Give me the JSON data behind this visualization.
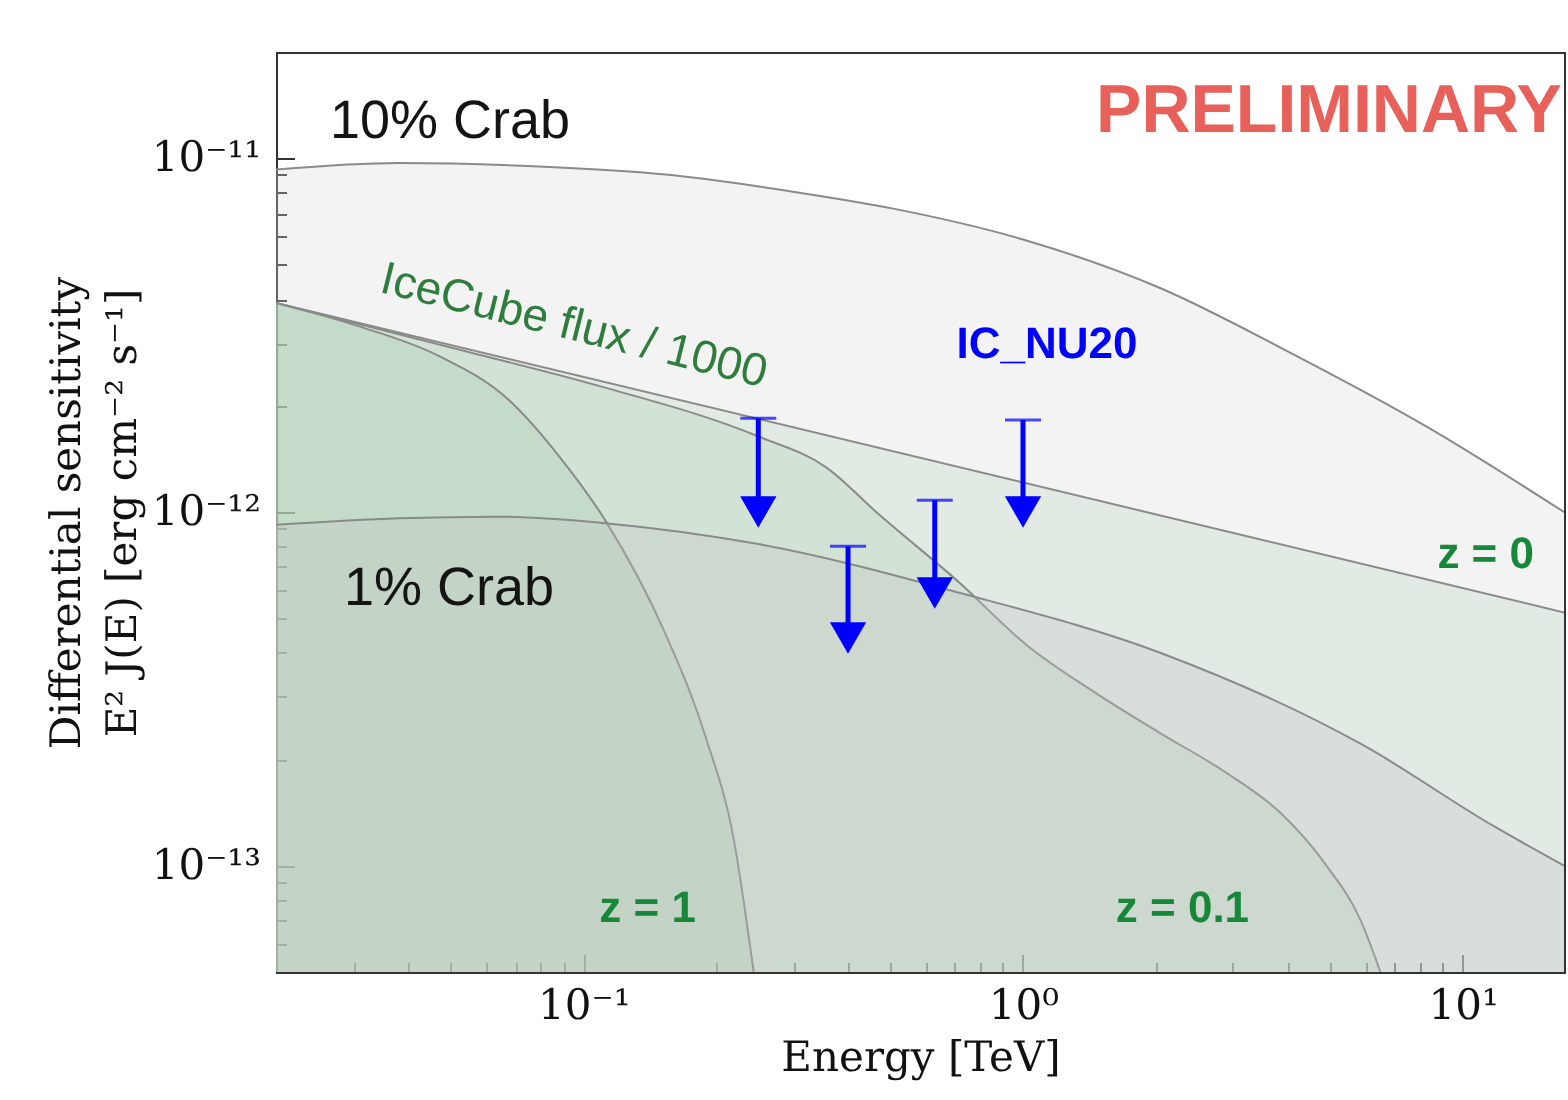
{
  "chart_data": {
    "type": "area",
    "log": "xy",
    "xlabel": "Energy [TeV]",
    "ylabel": "Differential sensitivity\nE² J(E) [erg cm⁻² s⁻¹]",
    "xlim": [
      0.02,
      17
    ],
    "ylim": [
      5e-14,
      2e-11
    ],
    "xticks": [
      {
        "value": 0.03,
        "label": null
      },
      {
        "value": 0.04,
        "label": null
      },
      {
        "value": 0.05,
        "label": null
      },
      {
        "value": 0.06,
        "label": null
      },
      {
        "value": 0.07,
        "label": null
      },
      {
        "value": 0.08,
        "label": null
      },
      {
        "value": 0.09,
        "label": null
      },
      {
        "value": 0.1,
        "label": "10⁻¹"
      },
      {
        "value": 0.2,
        "label": null
      },
      {
        "value": 0.3,
        "label": null
      },
      {
        "value": 0.4,
        "label": null
      },
      {
        "value": 0.5,
        "label": null
      },
      {
        "value": 0.6,
        "label": null
      },
      {
        "value": 0.7,
        "label": null
      },
      {
        "value": 0.8,
        "label": null
      },
      {
        "value": 0.9,
        "label": null
      },
      {
        "value": 1,
        "label": "10⁰"
      },
      {
        "value": 2,
        "label": null
      },
      {
        "value": 3,
        "label": null
      },
      {
        "value": 4,
        "label": null
      },
      {
        "value": 5,
        "label": null
      },
      {
        "value": 6,
        "label": null
      },
      {
        "value": 7,
        "label": null
      },
      {
        "value": 8,
        "label": null
      },
      {
        "value": 9,
        "label": null
      },
      {
        "value": 10,
        "label": "10¹"
      }
    ],
    "yticks": [
      {
        "value": 6e-14,
        "label": null
      },
      {
        "value": 7e-14,
        "label": null
      },
      {
        "value": 8e-14,
        "label": null
      },
      {
        "value": 9e-14,
        "label": null
      },
      {
        "value": 1e-13,
        "label": "10⁻¹³"
      },
      {
        "value": 2e-13,
        "label": null
      },
      {
        "value": 3e-13,
        "label": null
      },
      {
        "value": 4e-13,
        "label": null
      },
      {
        "value": 5e-13,
        "label": null
      },
      {
        "value": 6e-13,
        "label": null
      },
      {
        "value": 7e-13,
        "label": null
      },
      {
        "value": 8e-13,
        "label": null
      },
      {
        "value": 9e-13,
        "label": null
      },
      {
        "value": 1e-12,
        "label": "10⁻¹²"
      },
      {
        "value": 2e-12,
        "label": null
      },
      {
        "value": 3e-12,
        "label": null
      },
      {
        "value": 4e-12,
        "label": null
      },
      {
        "value": 5e-12,
        "label": null
      },
      {
        "value": 6e-12,
        "label": null
      },
      {
        "value": 7e-12,
        "label": null
      },
      {
        "value": 8e-12,
        "label": null
      },
      {
        "value": 9e-12,
        "label": null
      },
      {
        "value": 1e-11,
        "label": "10⁻¹¹"
      }
    ],
    "annotations": [
      "PRELIMINARY",
      "IceCube flux / 1000"
    ],
    "series": [
      {
        "name": "10% Crab",
        "color": "#d6d6d6",
        "x": [
          0.02,
          0.038,
          0.077,
          0.154,
          0.31,
          0.51,
          1.0,
          2.05,
          4.1,
          8.3,
          17
        ],
        "values": [
          9.3e-12,
          9.7e-12,
          9.5e-12,
          9e-12,
          8e-12,
          7.2e-12,
          5.9e-12,
          4.3e-12,
          2.8e-12,
          1.74e-12,
          1e-12
        ]
      },
      {
        "name": "z = 0",
        "color": "#b8d6c0",
        "x": [
          0.02,
          17
        ],
        "values": [
          3.9e-12,
          5.2e-13
        ]
      },
      {
        "name": "z = 0.1",
        "color": "#aed0b7",
        "x": [
          0.02,
          0.054,
          0.109,
          0.252,
          0.356,
          0.472,
          0.718,
          1.02,
          1.45,
          2.05,
          2.9,
          3.85,
          4.9,
          5.86,
          6.5
        ],
        "values": [
          3.9e-12,
          2.85e-12,
          2.27e-12,
          1.63e-12,
          1.34e-12,
          9.8e-13,
          6.3e-13,
          4.2e-13,
          3.1e-13,
          2.37e-13,
          1.83e-13,
          1.41e-13,
          1e-13,
          7e-14,
          5e-14
        ]
      },
      {
        "name": "z = 1",
        "color": "#a2caad",
        "x": [
          0.02,
          0.0309,
          0.047,
          0.0678,
          0.088,
          0.112,
          0.154,
          0.19,
          0.22,
          0.244
        ],
        "values": [
          3.9e-12,
          3.35e-12,
          2.76e-12,
          2.07e-12,
          1.44e-12,
          9.5e-13,
          4.5e-13,
          2.3e-13,
          1.18e-13,
          5e-14
        ]
      },
      {
        "name": "1% Crab",
        "color": "#c4c4c4",
        "x": [
          0.02,
          0.038,
          0.064,
          0.112,
          0.252,
          0.72,
          2.05,
          5.9,
          11.8,
          17
        ],
        "values": [
          9.2e-13,
          9.6e-13,
          9.7e-13,
          9.3e-13,
          8.1e-13,
          5.9e-13,
          4e-13,
          2.2e-13,
          1.29e-13,
          1e-13
        ]
      },
      {
        "name": "IC_NU20",
        "type": "scatter",
        "marker": "triangle",
        "color": "#0000ff",
        "x": [
          0.25,
          0.4,
          0.63,
          1.0
        ],
        "values": [
          1e-12,
          4.4e-13,
          5.9e-13,
          1e-12
        ],
        "errors": [
          [
            1e-12,
            1.84e-12
          ],
          [
            4.4e-13,
            8e-13
          ],
          [
            5.9e-13,
            1.08e-12
          ],
          [
            1e-12,
            1.82e-12
          ]
        ]
      }
    ]
  }
}
